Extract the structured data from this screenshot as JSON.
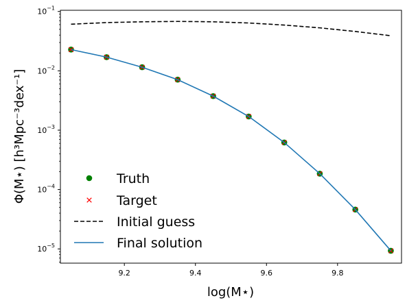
{
  "chart_data": {
    "type": "line",
    "xlabel": "log(M⋆)",
    "ylabel": "Φ(M⋆) [h³Mpc⁻³dex⁻¹]",
    "xlim": [
      9.02,
      9.98
    ],
    "ylim_log10": [
      -5.24,
      -0.98
    ],
    "yscale": "log",
    "grid": false,
    "legend_position": "lower-left",
    "x_ticks": [
      "9.2",
      "9.4",
      "9.6",
      "9.8"
    ],
    "x_tick_values": [
      9.2,
      9.4,
      9.6,
      9.8
    ],
    "y_ticks": [
      {
        "base": "10",
        "exp": "−1",
        "value": 0.1
      },
      {
        "base": "10",
        "exp": "−2",
        "value": 0.01
      },
      {
        "base": "10",
        "exp": "−3",
        "value": 0.001
      },
      {
        "base": "10",
        "exp": "−4",
        "value": 0.0001
      },
      {
        "base": "10",
        "exp": "−5",
        "value": 1e-05
      }
    ],
    "series": [
      {
        "name": "Truth",
        "style": "marker-circle",
        "color": "#008000",
        "x": [
          9.05,
          9.15,
          9.25,
          9.35,
          9.45,
          9.55,
          9.65,
          9.75,
          9.85,
          9.95
        ],
        "y": [
          0.0228,
          0.017,
          0.0115,
          0.0071,
          0.00375,
          0.0017,
          0.00062,
          0.000185,
          4.6e-05,
          9.3e-06
        ]
      },
      {
        "name": "Target",
        "style": "marker-x",
        "color": "#ff0000",
        "x": [
          9.05,
          9.15,
          9.25,
          9.35,
          9.45,
          9.55,
          9.65,
          9.75,
          9.85,
          9.95
        ],
        "y": [
          0.0228,
          0.017,
          0.0115,
          0.0071,
          0.00375,
          0.0017,
          0.00062,
          0.000185,
          4.6e-05,
          9.3e-06
        ]
      },
      {
        "name": "Initial guess",
        "style": "dashed",
        "color": "#000000",
        "x": [
          9.05,
          9.15,
          9.25,
          9.35,
          9.45,
          9.55,
          9.65,
          9.75,
          9.85,
          9.95
        ],
        "y": [
          0.061,
          0.065,
          0.067,
          0.068,
          0.067,
          0.064,
          0.059,
          0.053,
          0.046,
          0.039
        ]
      },
      {
        "name": "Final solution",
        "style": "solid",
        "color": "#1f77b4",
        "x": [
          9.05,
          9.15,
          9.25,
          9.35,
          9.45,
          9.55,
          9.65,
          9.75,
          9.85,
          9.95
        ],
        "y": [
          0.0228,
          0.017,
          0.0115,
          0.0071,
          0.00375,
          0.0017,
          0.00062,
          0.000185,
          4.6e-05,
          9.3e-06
        ]
      }
    ]
  }
}
